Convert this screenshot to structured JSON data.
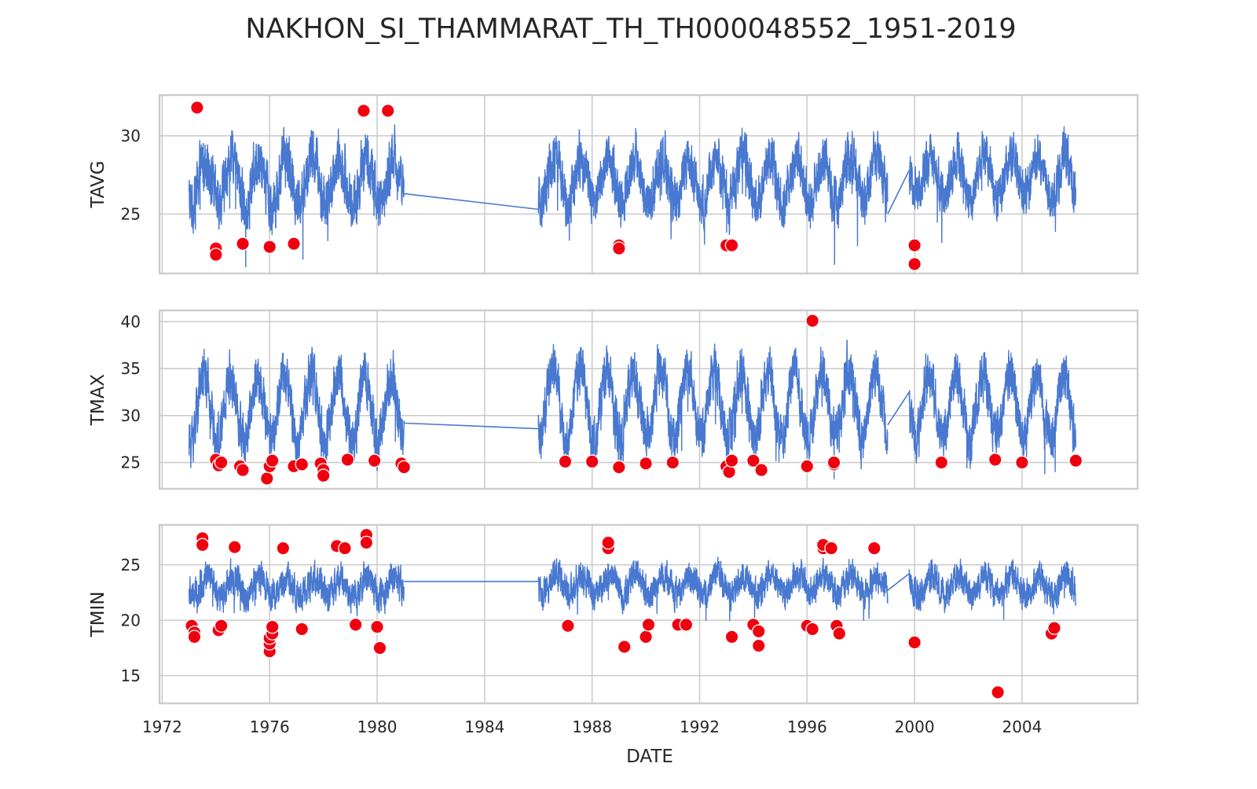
{
  "chart_data": {
    "type": "line",
    "title": "NAKHON_SI_THAMMARAT_TH_TH000048552_1951-2019",
    "xlabel": "DATE",
    "x_ticks": [
      "1972",
      "1976",
      "1980",
      "1984",
      "1988",
      "1992",
      "1996",
      "2000",
      "2004"
    ],
    "x_range": [
      1971.9,
      2008.3
    ],
    "grid": true,
    "shared_x": true,
    "colors": {
      "line": "#4878d0",
      "outlier": "#f0000f"
    },
    "panels": [
      {
        "ylabel": "TAVG",
        "yticks": [
          "25",
          "30"
        ],
        "ylim": [
          21.2,
          32.6
        ],
        "series": [
          {
            "segment": [
              1973.0,
              1981.0
            ],
            "level": 27.1,
            "amplitude": 1.5,
            "noise": 1.3,
            "phase": 0.35
          },
          {
            "segment": [
              1986.0,
              1999.0
            ],
            "level": 27.2,
            "amplitude": 1.4,
            "noise": 1.2,
            "phase": 0.35
          },
          {
            "segment": [
              1999.8,
              2006.0
            ],
            "level": 27.4,
            "amplitude": 1.3,
            "noise": 1.1,
            "phase": 0.35
          }
        ],
        "connectors": [
          {
            "x": [
              1981.0,
              1986.0
            ],
            "y": [
              26.3,
              25.3
            ]
          },
          {
            "x": [
              1999.0,
              1999.8
            ],
            "y": [
              25.0,
              27.8
            ]
          }
        ],
        "outliers": [
          {
            "x": 1973.3,
            "y": 31.8
          },
          {
            "x": 1974.0,
            "y": 22.8
          },
          {
            "x": 1974.0,
            "y": 22.4
          },
          {
            "x": 1975.0,
            "y": 23.1
          },
          {
            "x": 1976.0,
            "y": 22.9
          },
          {
            "x": 1976.9,
            "y": 23.1
          },
          {
            "x": 1979.5,
            "y": 31.6
          },
          {
            "x": 1980.4,
            "y": 31.6
          },
          {
            "x": 1989.0,
            "y": 23.0
          },
          {
            "x": 1989.0,
            "y": 22.8
          },
          {
            "x": 1993.0,
            "y": 23.0
          },
          {
            "x": 1993.2,
            "y": 23.0
          },
          {
            "x": 2000.0,
            "y": 23.0
          },
          {
            "x": 2000.0,
            "y": 21.8
          }
        ]
      },
      {
        "ylabel": "TMAX",
        "yticks": [
          "25",
          "30",
          "35",
          "40"
        ],
        "ylim": [
          22.2,
          41.2
        ],
        "series": [
          {
            "segment": [
              1973.0,
              1981.0
            ],
            "level": 30.8,
            "amplitude": 3.6,
            "noise": 2.0,
            "phase": 0.3
          },
          {
            "segment": [
              1986.0,
              1999.0
            ],
            "level": 31.2,
            "amplitude": 3.6,
            "noise": 2.0,
            "phase": 0.3
          },
          {
            "segment": [
              1999.8,
              2006.0
            ],
            "level": 31.0,
            "amplitude": 3.4,
            "noise": 1.9,
            "phase": 0.3
          }
        ],
        "connectors": [
          {
            "x": [
              1981.0,
              1986.0
            ],
            "y": [
              29.2,
              28.6
            ]
          },
          {
            "x": [
              1999.0,
              1999.8
            ],
            "y": [
              29.0,
              32.5
            ]
          }
        ],
        "outliers": [
          {
            "x": 1974.0,
            "y": 25.3
          },
          {
            "x": 1974.1,
            "y": 24.7
          },
          {
            "x": 1974.2,
            "y": 25.0
          },
          {
            "x": 1974.9,
            "y": 24.6
          },
          {
            "x": 1975.0,
            "y": 24.2
          },
          {
            "x": 1975.9,
            "y": 23.3
          },
          {
            "x": 1976.0,
            "y": 24.6
          },
          {
            "x": 1976.1,
            "y": 25.2
          },
          {
            "x": 1976.9,
            "y": 24.6
          },
          {
            "x": 1977.2,
            "y": 24.8
          },
          {
            "x": 1977.9,
            "y": 24.9
          },
          {
            "x": 1978.0,
            "y": 24.2
          },
          {
            "x": 1978.0,
            "y": 23.6
          },
          {
            "x": 1978.9,
            "y": 25.3
          },
          {
            "x": 1979.9,
            "y": 25.2
          },
          {
            "x": 1980.9,
            "y": 24.9
          },
          {
            "x": 1981.0,
            "y": 24.5
          },
          {
            "x": 1987.0,
            "y": 25.1
          },
          {
            "x": 1988.0,
            "y": 25.1
          },
          {
            "x": 1989.0,
            "y": 24.5
          },
          {
            "x": 1990.0,
            "y": 24.9
          },
          {
            "x": 1991.0,
            "y": 25.0
          },
          {
            "x": 1993.0,
            "y": 24.6
          },
          {
            "x": 1993.1,
            "y": 24.0
          },
          {
            "x": 1993.2,
            "y": 25.2
          },
          {
            "x": 1994.0,
            "y": 25.2
          },
          {
            "x": 1994.3,
            "y": 24.2
          },
          {
            "x": 1996.0,
            "y": 24.6
          },
          {
            "x": 1996.2,
            "y": 40.1
          },
          {
            "x": 1997.0,
            "y": 24.8
          },
          {
            "x": 1997.0,
            "y": 25.0
          },
          {
            "x": 2001.0,
            "y": 25.0
          },
          {
            "x": 2003.0,
            "y": 25.3
          },
          {
            "x": 2004.0,
            "y": 25.0
          },
          {
            "x": 2006.0,
            "y": 25.2
          }
        ]
      },
      {
        "ylabel": "TMIN",
        "yticks": [
          "15",
          "20",
          "25"
        ],
        "ylim": [
          12.5,
          28.6
        ],
        "series": [
          {
            "segment": [
              1973.0,
              1981.0
            ],
            "level": 23.0,
            "amplitude": 0.9,
            "noise": 1.1,
            "phase": 0.4
          },
          {
            "segment": [
              1986.0,
              1999.0
            ],
            "level": 23.2,
            "amplitude": 0.9,
            "noise": 1.0,
            "phase": 0.4
          },
          {
            "segment": [
              1999.8,
              2006.0
            ],
            "level": 23.1,
            "amplitude": 0.9,
            "noise": 1.0,
            "phase": 0.4
          }
        ],
        "connectors": [
          {
            "x": [
              1981.0,
              1986.0
            ],
            "y": [
              23.5,
              23.5
            ]
          },
          {
            "x": [
              1999.0,
              1999.8
            ],
            "y": [
              22.7,
              24.2
            ]
          }
        ],
        "outliers": [
          {
            "x": 1973.1,
            "y": 19.5
          },
          {
            "x": 1973.2,
            "y": 18.9
          },
          {
            "x": 1973.2,
            "y": 18.5
          },
          {
            "x": 1973.5,
            "y": 27.4
          },
          {
            "x": 1973.5,
            "y": 26.8
          },
          {
            "x": 1974.1,
            "y": 19.1
          },
          {
            "x": 1974.2,
            "y": 19.5
          },
          {
            "x": 1974.7,
            "y": 26.6
          },
          {
            "x": 1976.0,
            "y": 17.2
          },
          {
            "x": 1976.0,
            "y": 17.9
          },
          {
            "x": 1976.0,
            "y": 18.4
          },
          {
            "x": 1976.1,
            "y": 18.8
          },
          {
            "x": 1976.1,
            "y": 19.4
          },
          {
            "x": 1976.5,
            "y": 26.5
          },
          {
            "x": 1977.2,
            "y": 19.2
          },
          {
            "x": 1978.5,
            "y": 26.7
          },
          {
            "x": 1978.8,
            "y": 26.5
          },
          {
            "x": 1979.2,
            "y": 19.6
          },
          {
            "x": 1979.6,
            "y": 27.7
          },
          {
            "x": 1979.6,
            "y": 27.0
          },
          {
            "x": 1980.0,
            "y": 19.4
          },
          {
            "x": 1980.1,
            "y": 17.5
          },
          {
            "x": 1987.1,
            "y": 19.5
          },
          {
            "x": 1988.6,
            "y": 26.5
          },
          {
            "x": 1988.6,
            "y": 27.0
          },
          {
            "x": 1989.2,
            "y": 17.6
          },
          {
            "x": 1990.0,
            "y": 18.5
          },
          {
            "x": 1990.1,
            "y": 19.6
          },
          {
            "x": 1991.2,
            "y": 19.6
          },
          {
            "x": 1991.5,
            "y": 19.6
          },
          {
            "x": 1993.2,
            "y": 18.5
          },
          {
            "x": 1994.0,
            "y": 19.6
          },
          {
            "x": 1994.2,
            "y": 17.7
          },
          {
            "x": 1994.2,
            "y": 19.0
          },
          {
            "x": 1996.0,
            "y": 19.5
          },
          {
            "x": 1996.2,
            "y": 19.2
          },
          {
            "x": 1996.6,
            "y": 26.5
          },
          {
            "x": 1996.6,
            "y": 26.8
          },
          {
            "x": 1996.9,
            "y": 26.5
          },
          {
            "x": 1997.1,
            "y": 19.5
          },
          {
            "x": 1997.2,
            "y": 18.8
          },
          {
            "x": 1998.5,
            "y": 26.5
          },
          {
            "x": 2000.0,
            "y": 18.0
          },
          {
            "x": 2003.1,
            "y": 13.5
          },
          {
            "x": 2005.1,
            "y": 18.8
          },
          {
            "x": 2005.2,
            "y": 19.3
          }
        ]
      }
    ]
  }
}
